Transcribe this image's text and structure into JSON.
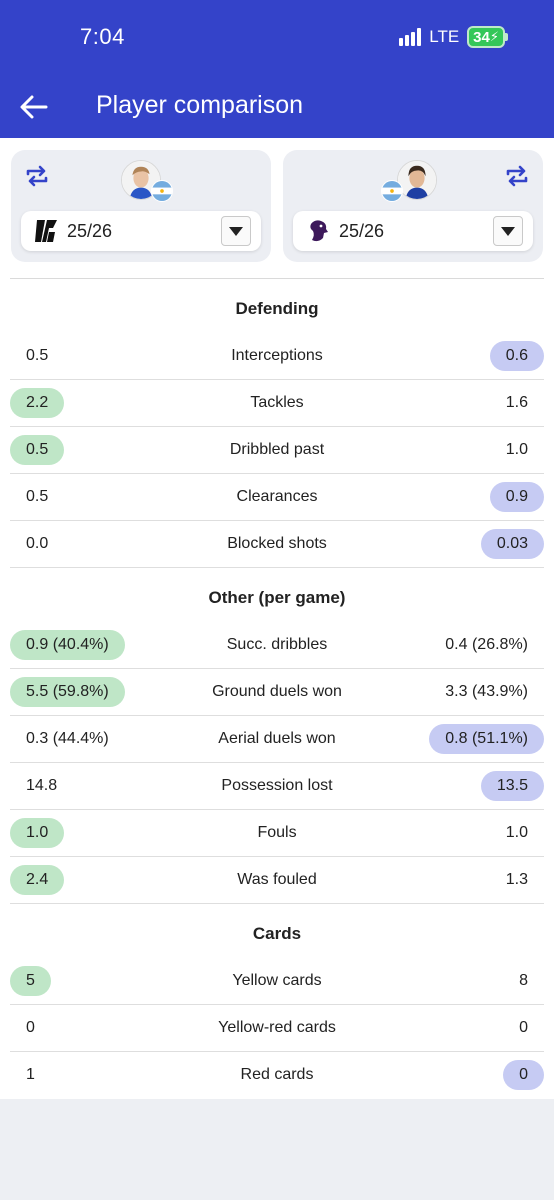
{
  "status_bar": {
    "time": "7:04",
    "network": "LTE",
    "battery": "34"
  },
  "header": {
    "title": "Player comparison"
  },
  "players": {
    "left": {
      "season": "25/26",
      "league_logo": "ligue-1-logo-icon",
      "flag": "argentina-flag-icon"
    },
    "right": {
      "season": "25/26",
      "league_logo": "premier-league-logo-icon",
      "flag": "argentina-flag-icon"
    }
  },
  "colors": {
    "header": "#3443c9",
    "left_highlight": "#bfe6c7",
    "right_highlight": "#c6cbf3"
  },
  "sections": [
    {
      "title": "Defending",
      "rows": [
        {
          "label": "Interceptions",
          "left": "0.5",
          "right": "0.6",
          "better": "right"
        },
        {
          "label": "Tackles",
          "left": "2.2",
          "right": "1.6",
          "better": "left"
        },
        {
          "label": "Dribbled past",
          "left": "0.5",
          "right": "1.0",
          "better": "left"
        },
        {
          "label": "Clearances",
          "left": "0.5",
          "right": "0.9",
          "better": "right"
        },
        {
          "label": "Blocked shots",
          "left": "0.0",
          "right": "0.03",
          "better": "right"
        }
      ]
    },
    {
      "title": "Other (per game)",
      "rows": [
        {
          "label": "Succ. dribbles",
          "left": "0.9 (40.4%)",
          "right": "0.4 (26.8%)",
          "better": "left"
        },
        {
          "label": "Ground duels won",
          "left": "5.5 (59.8%)",
          "right": "3.3 (43.9%)",
          "better": "left"
        },
        {
          "label": "Aerial duels won",
          "left": "0.3 (44.4%)",
          "right": "0.8 (51.1%)",
          "better": "right"
        },
        {
          "label": "Possession lost",
          "left": "14.8",
          "right": "13.5",
          "better": "right"
        },
        {
          "label": "Fouls",
          "left": "1.0",
          "right": "1.0",
          "better": "left"
        },
        {
          "label": "Was fouled",
          "left": "2.4",
          "right": "1.3",
          "better": "left"
        }
      ]
    },
    {
      "title": "Cards",
      "rows": [
        {
          "label": "Yellow cards",
          "left": "5",
          "right": "8",
          "better": "left"
        },
        {
          "label": "Yellow-red cards",
          "left": "0",
          "right": "0",
          "better": "none"
        },
        {
          "label": "Red cards",
          "left": "1",
          "right": "0",
          "better": "right"
        }
      ]
    }
  ]
}
